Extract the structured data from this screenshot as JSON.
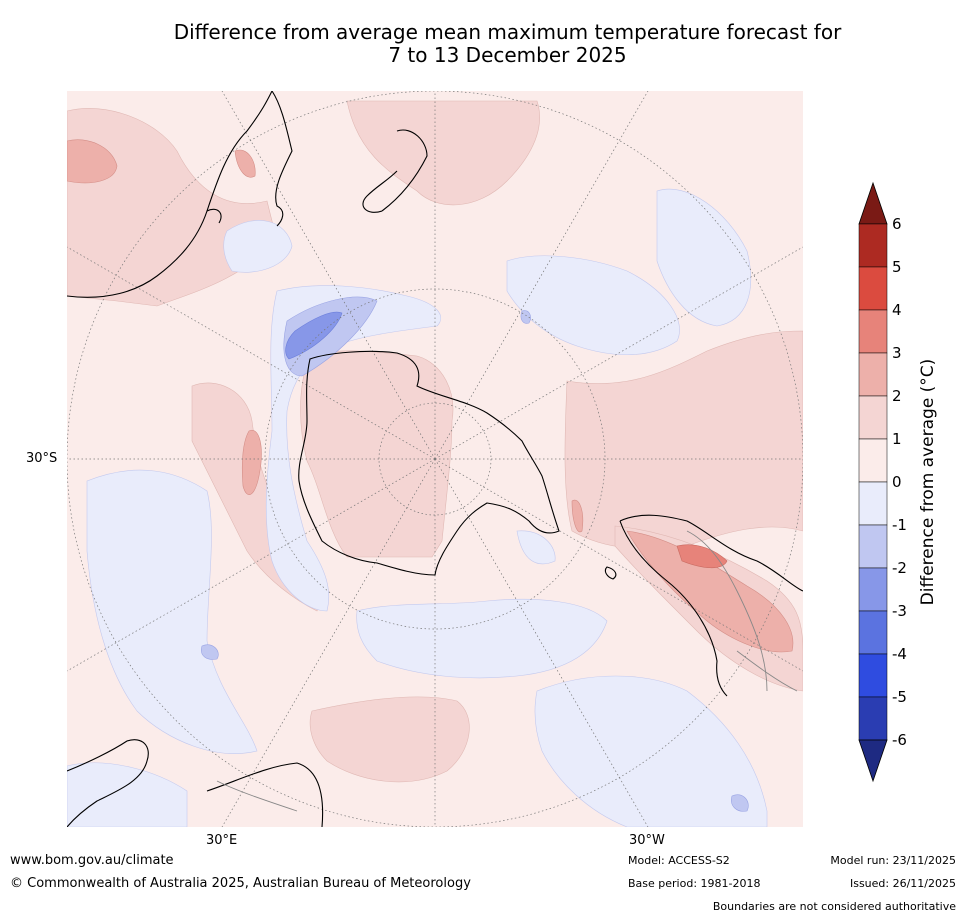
{
  "title": {
    "line1": "Difference from average mean maximum temperature forecast for",
    "line2": "7 to 13 December 2025"
  },
  "map": {
    "projection": "south-polar stereographic",
    "lat_label": "30°S",
    "lon_labels": {
      "east": "30°E",
      "west": "30°W"
    },
    "legend_categories": [
      {
        "range": "above 6",
        "color": "#7a1a15"
      },
      {
        "range": "5 to 6",
        "color": "#ad2a22"
      },
      {
        "range": "4 to 5",
        "color": "#db4b3f"
      },
      {
        "range": "3 to 4",
        "color": "#e7837a"
      },
      {
        "range": "2 to 3",
        "color": "#edb0aa"
      },
      {
        "range": "1 to 2",
        "color": "#f4d5d3"
      },
      {
        "range": "0 to 1",
        "color": "#fbecea"
      },
      {
        "range": "-1 to 0",
        "color": "#e9ecfb"
      },
      {
        "range": "-2 to -1",
        "color": "#c0c7f1"
      },
      {
        "range": "-3 to -2",
        "color": "#8797e8"
      },
      {
        "range": "-4 to -3",
        "color": "#5b73e0"
      },
      {
        "range": "-5 to -4",
        "color": "#2f4ce0"
      },
      {
        "range": "-6 to -5",
        "color": "#2a3db2"
      },
      {
        "range": "below -6",
        "color": "#1e2a82"
      }
    ]
  },
  "colorbar": {
    "label": "Difference from average (°C)",
    "ticks": [
      "6",
      "5",
      "4",
      "3",
      "2",
      "1",
      "0",
      "-1",
      "-2",
      "-3",
      "-4",
      "-5",
      "-6"
    ]
  },
  "footer": {
    "site": "www.bom.gov.au/climate",
    "copyright": "© Commonwealth of Australia 2025, Australian Bureau of Meteorology",
    "model": "Model: ACCESS-S2",
    "base_period": "Base period: 1981-2018",
    "model_run": "Model run: 23/11/2025",
    "issued": "Issued: 26/11/2025",
    "boundaries": "Boundaries are not considered authoritative"
  }
}
